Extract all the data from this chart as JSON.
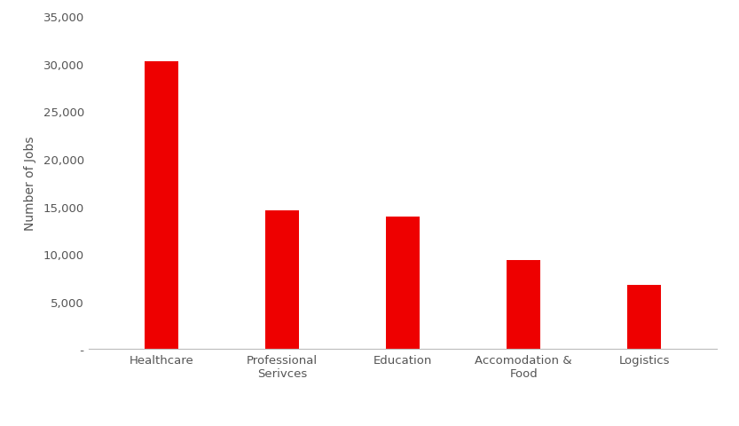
{
  "categories": [
    "Healthcare",
    "Professional\nSerivces",
    "Education",
    "Accomodation &\nFood",
    "Logistics"
  ],
  "values": [
    30300,
    14600,
    13900,
    9400,
    6800
  ],
  "bar_color": "#ee0000",
  "ylabel": "Number of Jobs",
  "ylim": [
    0,
    35000
  ],
  "yticks": [
    0,
    5000,
    10000,
    15000,
    20000,
    25000,
    30000,
    35000
  ],
  "background_color": "#ffffff",
  "bar_width": 0.28,
  "ylabel_fontsize": 10,
  "tick_fontsize": 9.5,
  "bottom_spine_color": "#bbbbbb"
}
